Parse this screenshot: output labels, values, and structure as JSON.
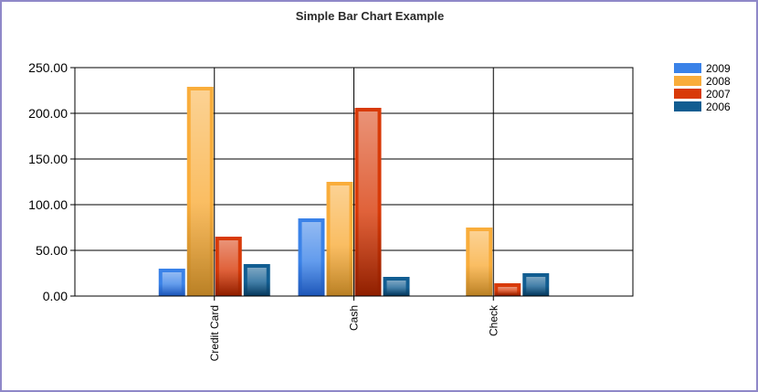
{
  "chart_data": {
    "type": "bar",
    "title": "Simple Bar Chart Example",
    "xlabel": "",
    "ylabel": "",
    "categories": [
      "Credit Card",
      "Cash",
      "Check"
    ],
    "yticks": [
      "0.00",
      "50.00",
      "100.00",
      "150.00",
      "200.00",
      "250.00"
    ],
    "ylim": [
      0,
      250
    ],
    "grid": true,
    "legend_position": "top-right",
    "series": [
      {
        "name": "2009",
        "color": "#3a82e8",
        "dark": "#1f57b8",
        "values": [
          30,
          85,
          0
        ]
      },
      {
        "name": "2008",
        "color": "#f9ad3b",
        "dark": "#b98025",
        "values": [
          229,
          125,
          75
        ]
      },
      {
        "name": "2007",
        "color": "#d83a08",
        "dark": "#8f1f00",
        "values": [
          65,
          206,
          14
        ]
      },
      {
        "name": "2006",
        "color": "#115d91",
        "dark": "#0a3b5e",
        "values": [
          35,
          21,
          25
        ]
      }
    ]
  }
}
